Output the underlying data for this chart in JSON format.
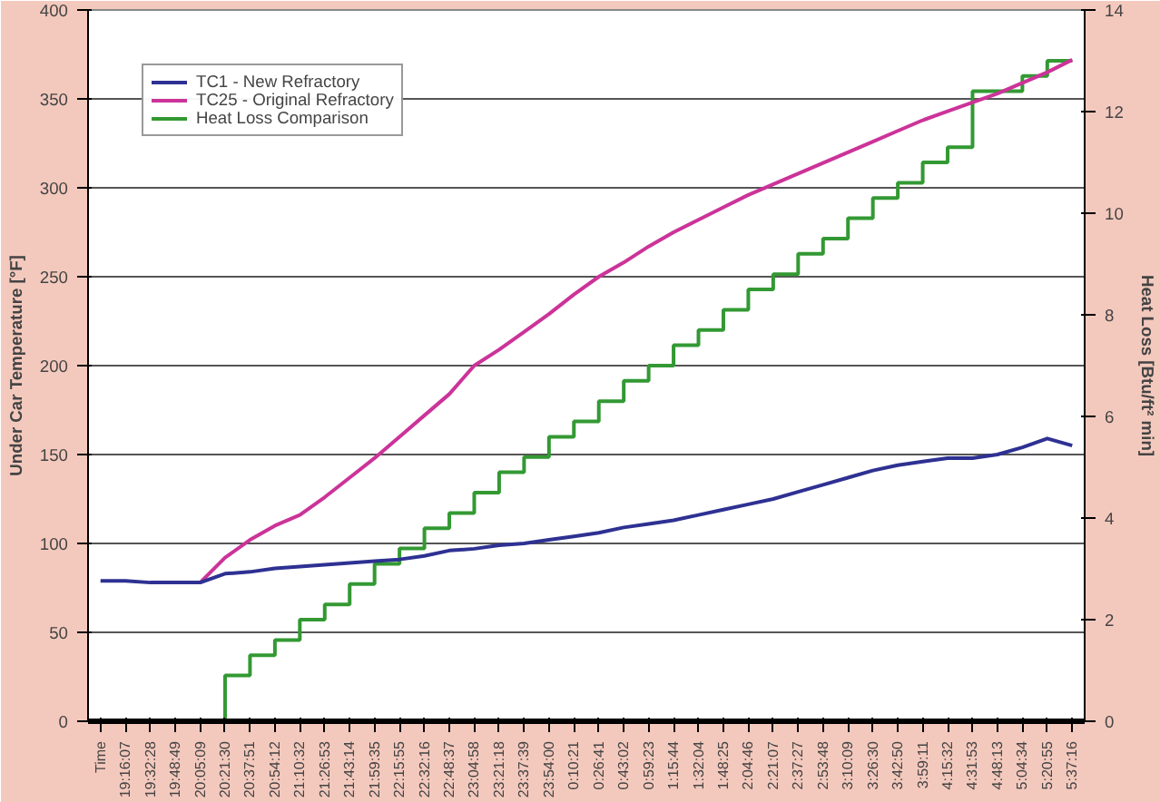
{
  "chart_data": {
    "type": "line",
    "ylabel": "Under Car Temperature [°F]",
    "y2label": "Heat Loss [Btu/ft² min]",
    "categories": [
      "Time",
      "19:16:07",
      "19:32:28",
      "19:48:49",
      "20:05:09",
      "20:21:30",
      "20:37:51",
      "20:54:12",
      "21:10:32",
      "21:26:53",
      "21:43:14",
      "21:59:35",
      "22:15:55",
      "22:32:16",
      "22:48:37",
      "23:04:58",
      "23:21:18",
      "23:37:39",
      "23:54:00",
      "0:10:21",
      "0:26:41",
      "0:43:02",
      "0:59:23",
      "1:15:44",
      "1:32:04",
      "1:48:25",
      "2:04:46",
      "2:21:07",
      "2:37:27",
      "2:53:48",
      "3:10:09",
      "3:26:30",
      "3:42:50",
      "3:59:11",
      "4:15:32",
      "4:31:53",
      "4:48:13",
      "5:04:34",
      "5:20:55",
      "5:37:16"
    ],
    "series": [
      {
        "name": "TC1 - New Refractory",
        "color": "#2e3192",
        "values": [
          79,
          79,
          78,
          78,
          78,
          83,
          84,
          86,
          87,
          88,
          89,
          90,
          91,
          93,
          96,
          97,
          99,
          100,
          102,
          104,
          106,
          109,
          111,
          113,
          116,
          119,
          122,
          125,
          129,
          133,
          137,
          141,
          144,
          146,
          148,
          148,
          150,
          154,
          159,
          155
        ]
      },
      {
        "name": "TC25 - Original Refractory",
        "color": "#cc3399",
        "values": [
          null,
          null,
          null,
          null,
          78,
          92,
          102,
          110,
          116,
          126,
          137,
          148,
          160,
          172,
          184,
          200,
          209,
          219,
          229,
          240,
          250,
          258,
          267,
          275,
          282,
          289,
          296,
          302,
          308,
          314,
          320,
          326,
          332,
          338,
          343,
          348,
          353,
          359,
          365,
          372
        ]
      },
      {
        "name": "Heat Loss Comparison",
        "color": "#339933",
        "type": "step",
        "axis": "y2",
        "values": [
          null,
          null,
          null,
          null,
          null,
          0,
          0.9,
          1.3,
          1.6,
          2.0,
          2.3,
          2.7,
          3.1,
          3.4,
          3.8,
          4.1,
          4.5,
          4.9,
          5.2,
          5.6,
          5.9,
          6.3,
          6.7,
          7.0,
          7.4,
          7.7,
          8.1,
          8.5,
          8.8,
          9.2,
          9.5,
          9.9,
          10.3,
          10.6,
          11.0,
          11.3,
          12.4,
          12.4,
          12.7,
          13.0
        ]
      }
    ],
    "ylim": [
      0,
      400
    ],
    "yticks": [
      0,
      50,
      100,
      150,
      200,
      250,
      300,
      350,
      400
    ],
    "y2lim": [
      0,
      14
    ],
    "y2ticks": [
      0,
      2,
      4,
      6,
      8,
      10,
      12,
      14
    ],
    "grid": "y",
    "legend": "top left",
    "marker": "none",
    "line_style": "solid"
  }
}
